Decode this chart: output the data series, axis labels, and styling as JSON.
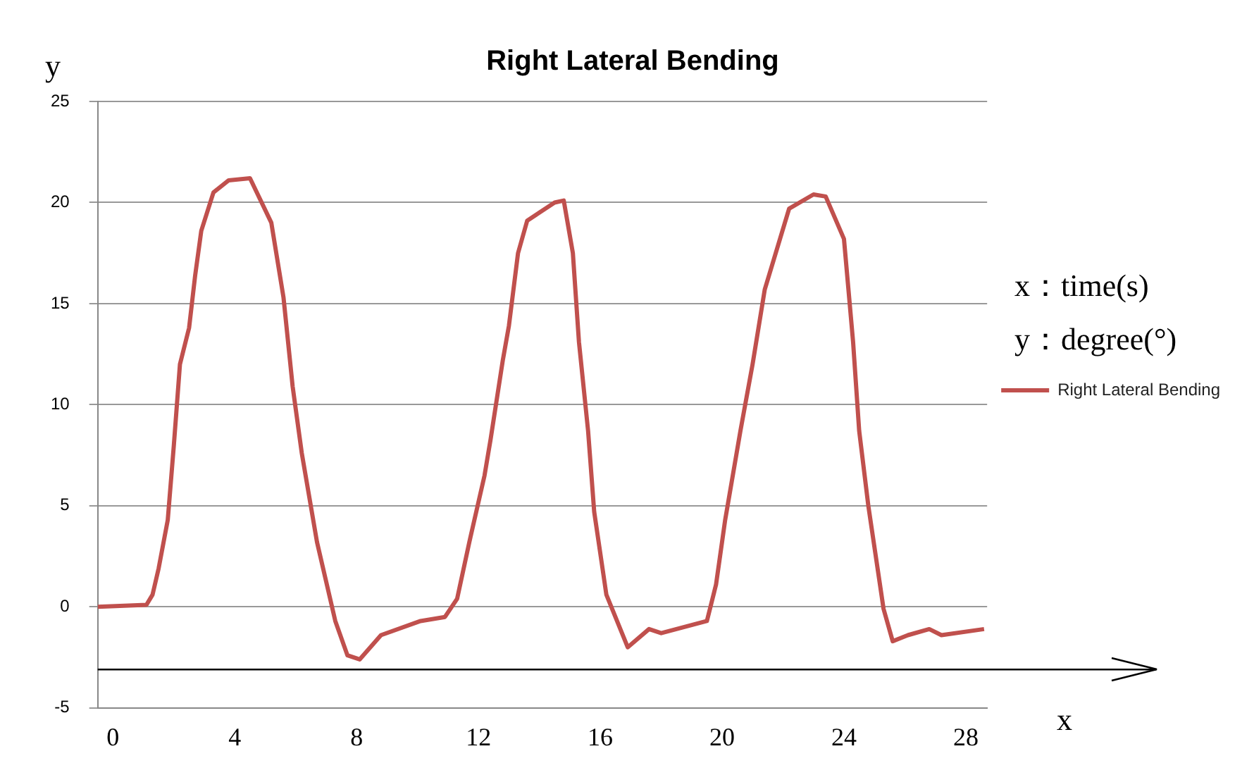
{
  "chart_data": {
    "type": "line",
    "title": "Right Lateral Bending",
    "xlabel": "x",
    "ylabel": "y",
    "annotations": [
      "x：time(s)",
      "y：degree(°)"
    ],
    "series": [
      {
        "name": "Right Lateral Bending",
        "color": "#c0504d",
        "x": [
          -0.5,
          1.1,
          1.3,
          1.5,
          1.8,
          2.0,
          2.2,
          2.5,
          2.7,
          2.9,
          3.3,
          3.8,
          4.5,
          5.2,
          5.6,
          5.9,
          6.2,
          6.7,
          7.3,
          7.7,
          8.1,
          8.8,
          10.1,
          10.9,
          11.3,
          11.7,
          12.2,
          12.4,
          12.8,
          13.0,
          13.3,
          13.6,
          14.0,
          14.5,
          14.8,
          15.1,
          15.3,
          15.6,
          15.8,
          16.2,
          16.9,
          17.6,
          18.0,
          19.5,
          19.8,
          20.1,
          20.6,
          21.0,
          21.4,
          21.9,
          22.2,
          23.0,
          23.4,
          24.0,
          24.3,
          24.5,
          24.8,
          25.3,
          25.6,
          26.1,
          26.8,
          27.2,
          28.6
        ],
        "values": [
          0,
          0.1,
          0.6,
          1.9,
          4.3,
          8.0,
          12.0,
          13.8,
          16.4,
          18.6,
          20.5,
          21.1,
          21.2,
          19.0,
          15.3,
          10.9,
          7.6,
          3.2,
          -0.7,
          -2.4,
          -2.6,
          -1.4,
          -0.7,
          -0.5,
          0.4,
          3.2,
          6.5,
          8.3,
          12.2,
          13.9,
          17.5,
          19.1,
          19.5,
          20.0,
          20.1,
          17.5,
          13.1,
          8.7,
          4.7,
          0.6,
          -2.0,
          -1.1,
          -1.3,
          -0.7,
          1.1,
          4.3,
          8.7,
          12.0,
          15.7,
          18.2,
          19.7,
          20.4,
          20.3,
          18.2,
          13.1,
          8.7,
          5.0,
          -0.1,
          -1.7,
          -1.4,
          -1.1,
          -1.4,
          -1.1
        ]
      }
    ],
    "xlim": [
      -0.5,
      28.7
    ],
    "xticks": [
      0,
      4,
      8,
      12,
      16,
      20,
      24,
      28
    ],
    "ylim": [
      -5,
      25
    ],
    "yticks": [
      -5,
      0,
      5,
      10,
      15,
      20,
      25
    ],
    "ref_lines": [
      {
        "axis": "y",
        "value": -3.1,
        "color": "#000000",
        "line_style": "solid"
      }
    ],
    "grid": "y",
    "legend": "right",
    "marker": "none",
    "line_style": "solid"
  }
}
